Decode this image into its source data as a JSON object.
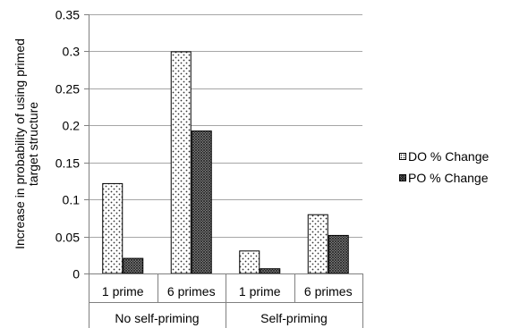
{
  "chart_data": {
    "type": "bar",
    "title": "",
    "ylabel": "Increase in probability of using primed target structure",
    "ylabel_lines": [
      "Increase in probability of using primed",
      "target structure"
    ],
    "xlabel": "",
    "ylim": [
      0,
      0.35
    ],
    "yticks": [
      0,
      0.05,
      0.1,
      0.15,
      0.2,
      0.25,
      0.3,
      0.35
    ],
    "ytick_labels": [
      "0",
      "0.05",
      "0.1",
      "0.15",
      "0.2",
      "0.25",
      "0.3",
      "0.35"
    ],
    "groups": [
      {
        "label": "No self-priming",
        "categories": [
          "1 prime",
          "6 primes"
        ]
      },
      {
        "label": "Self-priming",
        "categories": [
          "1 prime",
          "6 primes"
        ]
      }
    ],
    "categories": [
      "1 prime",
      "6 primes",
      "1 prime",
      "6 primes"
    ],
    "series": [
      {
        "name": "DO % Change",
        "values": [
          0.122,
          0.3,
          0.031,
          0.08
        ],
        "pattern": "dots",
        "color": "#ffffff"
      },
      {
        "name": "PO % Change",
        "values": [
          0.021,
          0.193,
          0.007,
          0.052
        ],
        "pattern": "crosshatch",
        "color": "#888888"
      }
    ],
    "grid": true,
    "legend_position": "right"
  }
}
